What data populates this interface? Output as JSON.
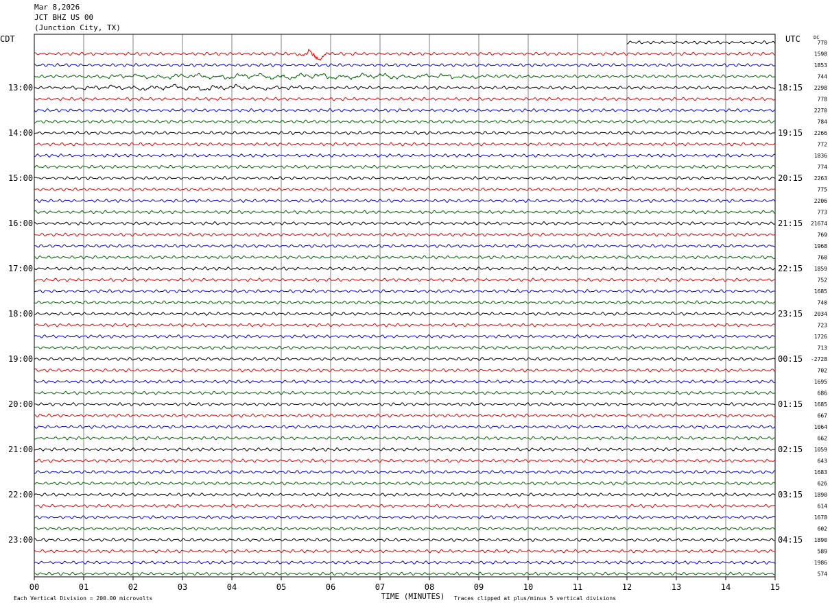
{
  "header": {
    "date": "Mar 8,2026",
    "station": "JCT BHZ US 00",
    "location": "(Junction City, TX)"
  },
  "colors": {
    "trace_cycle": [
      "#000000",
      "#e00000",
      "#0000d0",
      "#006000"
    ],
    "grid": "#808080",
    "frame": "#000000"
  },
  "chart_data": {
    "type": "line",
    "title": "",
    "left_axis_label": "CDT",
    "right_axis_label": "UTC",
    "dc_label": "DC",
    "xlabel": "TIME (MINUTES)",
    "xlim": [
      0,
      15
    ],
    "x_ticks": [
      "00",
      "01",
      "02",
      "03",
      "04",
      "05",
      "06",
      "07",
      "08",
      "09",
      "10",
      "11",
      "12",
      "13",
      "14",
      "15"
    ],
    "grid": true,
    "left_time_labels": [
      {
        "row": 4,
        "text": "13:00"
      },
      {
        "row": 8,
        "text": "14:00"
      },
      {
        "row": 12,
        "text": "15:00"
      },
      {
        "row": 16,
        "text": "16:00"
      },
      {
        "row": 20,
        "text": "17:00"
      },
      {
        "row": 24,
        "text": "18:00"
      },
      {
        "row": 28,
        "text": "19:00"
      },
      {
        "row": 32,
        "text": "20:00"
      },
      {
        "row": 36,
        "text": "21:00"
      },
      {
        "row": 40,
        "text": "22:00"
      },
      {
        "row": 44,
        "text": "23:00"
      }
    ],
    "right_time_labels": [
      {
        "row": 4,
        "text": "18:15"
      },
      {
        "row": 8,
        "text": "19:15"
      },
      {
        "row": 12,
        "text": "20:15"
      },
      {
        "row": 16,
        "text": "21:15"
      },
      {
        "row": 20,
        "text": "22:15"
      },
      {
        "row": 24,
        "text": "23:15"
      },
      {
        "row": 28,
        "text": "00:15"
      },
      {
        "row": 32,
        "text": "01:15"
      },
      {
        "row": 36,
        "text": "02:15"
      },
      {
        "row": 40,
        "text": "03:15"
      },
      {
        "row": 44,
        "text": "04:15"
      }
    ],
    "dc_values": [
      "770",
      "1598",
      "1853",
      "744",
      "2298",
      "778",
      "2270",
      "784",
      "2266",
      "772",
      "1836",
      "774",
      "2263",
      "775",
      "2206",
      "773",
      "21674",
      "769",
      "1968",
      "760",
      "1859",
      "752",
      "1685",
      "740",
      "2034",
      "723",
      "1726",
      "713",
      "-2728",
      "702",
      "1695",
      "686",
      "1685",
      "667",
      "1064",
      "662",
      "1059",
      "643",
      "1683",
      "626",
      "1890",
      "614",
      "1678",
      "602",
      "1890",
      "589",
      "1986",
      "574"
    ],
    "trace_count": 48,
    "trace_start_minute": [
      12,
      0,
      0,
      0,
      0,
      0,
      0,
      0,
      0,
      0,
      0,
      0,
      0,
      0,
      0,
      0,
      0,
      0,
      0,
      0,
      0,
      0,
      0,
      0,
      0,
      0,
      0,
      0,
      0,
      0,
      0,
      0,
      0,
      0,
      0,
      0,
      0,
      0,
      0,
      0,
      0,
      0,
      0,
      0,
      0,
      0,
      0,
      0
    ],
    "events": [
      {
        "row": 1,
        "start_minute": 5.3,
        "end_minute": 6.3,
        "peak_divisions": 3.0
      },
      {
        "row": 3,
        "start_minute": 0.0,
        "end_minute": 15.0,
        "peak_divisions": 1.1
      },
      {
        "row": 4,
        "start_minute": 0.0,
        "end_minute": 8.5,
        "peak_divisions": 1.0
      }
    ],
    "amplitude_note": "Each Vertical Division =  200.00 microvolts",
    "clip_note": "Traces clipped at plus/minus 5 vertical divisions"
  }
}
